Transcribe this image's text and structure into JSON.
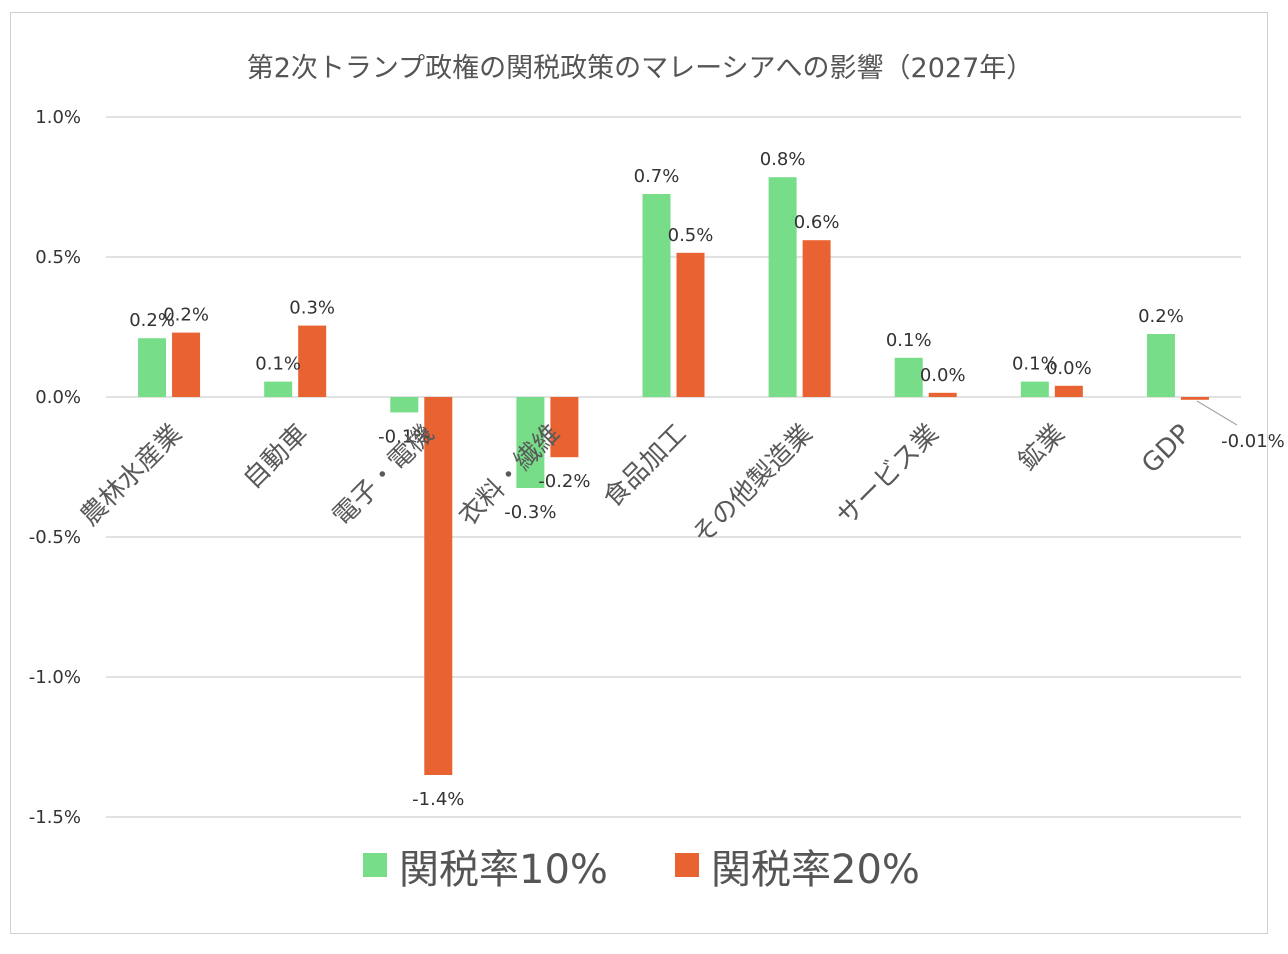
{
  "chart_data": {
    "type": "bar",
    "title": "第2次トランプ政権の関税政策のマレーシアへの影響（2027年）",
    "xlabel": "",
    "ylabel": "",
    "categories": [
      "農林水産業",
      "自動車",
      "電子・電機",
      "衣料・繊維",
      "食品加工",
      "その他製造業",
      "サービス業",
      "鉱業",
      "GDP"
    ],
    "series": [
      {
        "name": "関税率10%",
        "color": "#77DD88",
        "values": [
          0.21,
          0.055,
          -0.055,
          -0.325,
          0.725,
          0.785,
          0.14,
          0.055,
          0.225
        ],
        "labels": [
          "0.2%",
          "0.1%",
          "-0.1%",
          "-0.3%",
          "0.7%",
          "0.8%",
          "0.1%",
          "0.1%",
          "0.2%"
        ]
      },
      {
        "name": "関税率20%",
        "color": "#E96232",
        "values": [
          0.23,
          0.255,
          -1.35,
          -0.215,
          0.515,
          0.56,
          0.015,
          0.04,
          -0.01
        ],
        "labels": [
          "0.2%",
          "0.3%",
          "-1.4%",
          "-0.2%",
          "0.5%",
          "0.6%",
          "0.0%",
          "0.0%",
          "-0.01%"
        ]
      }
    ],
    "ylim": [
      -1.5,
      1.0
    ],
    "yticks": [
      1.0,
      0.5,
      0.0,
      -0.5,
      -1.0,
      -1.5
    ],
    "ytick_labels": [
      "1.0%",
      "0.5%",
      "0.0%",
      "-0.5%",
      "-1.0%",
      "-1.5%"
    ],
    "grid": true,
    "legend_position": "bottom"
  }
}
